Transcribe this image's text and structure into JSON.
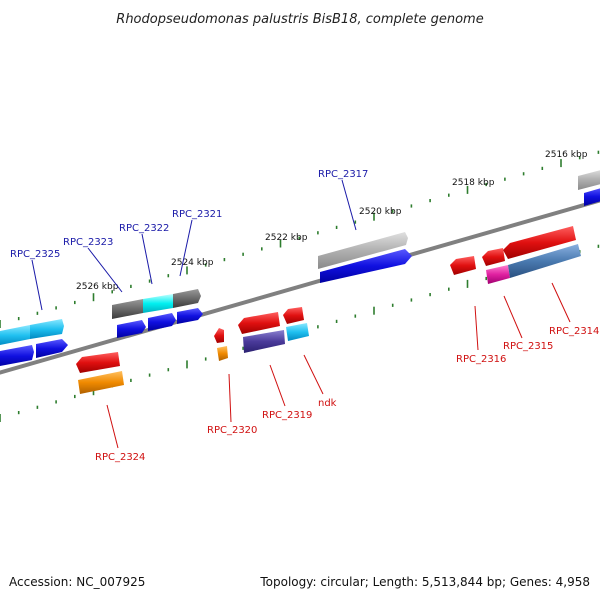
{
  "title": "Rhodopseudomonas palustris BisB18, complete genome",
  "accession": "Accession: NC_007925",
  "topology": "Topology: circular; Length: 5,513,844 bp; Genes: 4,958",
  "kbp_labels": [
    "2516 kbp",
    "2518 kbp",
    "2520 kbp",
    "2522 kbp",
    "2524 kbp",
    "2526 kbp"
  ],
  "gene_labels": {
    "rpc_2325": "RPC_2325",
    "rpc_2323": "RPC_2323",
    "rpc_2322": "RPC_2322",
    "rpc_2321": "RPC_2321",
    "rpc_2317": "RPC_2317",
    "rpc_2324": "RPC_2324",
    "rpc_2320": "RPC_2320",
    "rpc_2319": "RPC_2319",
    "ndk": "ndk",
    "rpc_2316": "RPC_2316",
    "rpc_2315": "RPC_2315",
    "rpc_2314": "RPC_2314"
  },
  "colors": {
    "backbone": "#808080",
    "tick": "#2e7d2e",
    "label_forward": "#1a1aa8",
    "label_reverse": "#d01010",
    "gene_blue": "#1010e0",
    "gene_red": "#e01010",
    "gene_cyan": "#20c0f0",
    "gene_gray": "#9a9a9a",
    "gene_orange": "#f08a00",
    "gene_purple": "#4a3a9a",
    "gene_magenta": "#e020a0",
    "gene_steel": "#4a7ab0"
  }
}
